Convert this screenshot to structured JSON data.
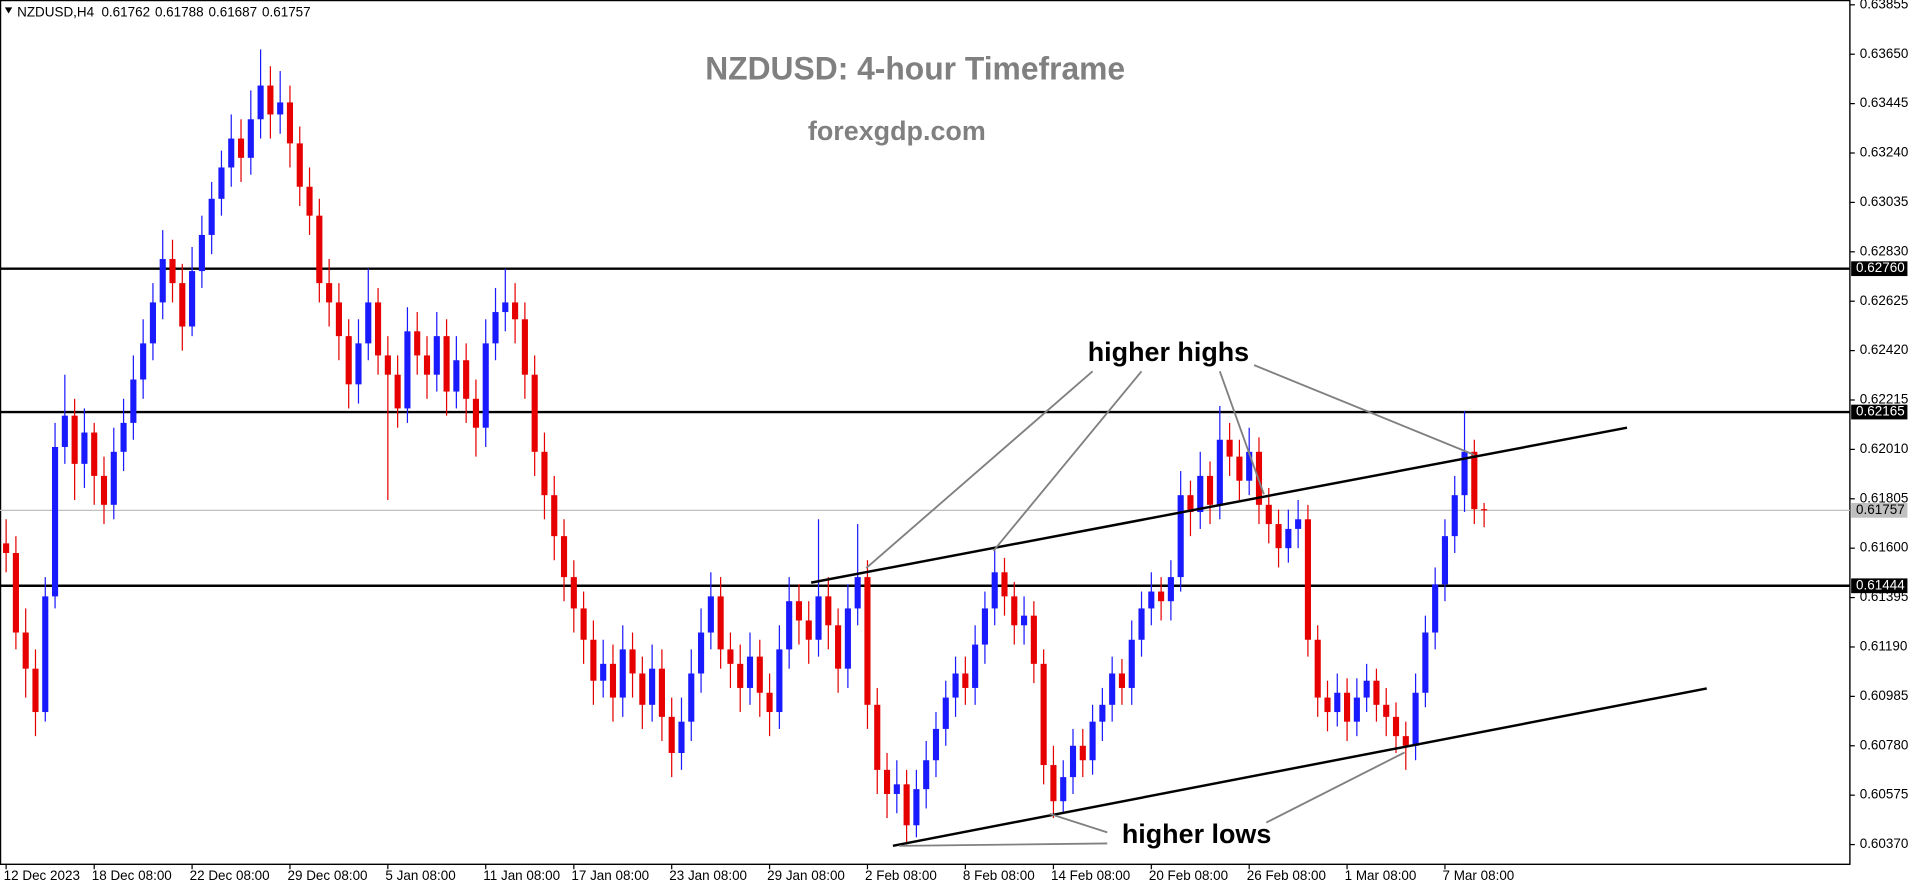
{
  "chart_data": {
    "type": "candlestick",
    "symbol": "NZDUSD,H4",
    "title": "NZDUSD: 4-hour Timeframe",
    "subtitle": "forexgdp.com",
    "annotations": [
      "higher highs",
      "higher lows"
    ],
    "up_color": "#1a1aff",
    "down_color": "#e60000",
    "level_color": "#000000",
    "bid_color": "#c0c0c0",
    "ylim": [
      0.60288,
      0.63875
    ],
    "yticks": [
      0.63855,
      {
        "value": 0.6365,
        "label": "0.63650"
      },
      0.63445,
      {
        "value": 0.6324,
        "label": "0.63240"
      },
      0.63035,
      {
        "value": 0.6283,
        "label": "0.62830"
      },
      0.62625,
      {
        "value": 0.6242,
        "label": "0.62420"
      },
      0.62215,
      {
        "value": 0.6201,
        "label": "0.62010"
      },
      0.61805,
      {
        "value": 0.616,
        "label": "0.61600"
      },
      0.61395,
      {
        "value": 0.6119,
        "label": "0.61190"
      },
      0.60985,
      {
        "value": 0.6078,
        "label": "0.60780"
      },
      0.60575,
      {
        "value": 0.6037,
        "label": "0.60370"
      }
    ],
    "levels": [
      {
        "value": 0.6276,
        "label": "0.62760"
      },
      0.62165,
      0.61444
    ],
    "trendlines": [
      {
        "x": [
          82.25,
          165.6
        ],
        "y": [
          0.61457,
          0.621
        ]
      },
      {
        "x": [
          90.6,
          173.75
        ],
        "y": [
          0.60365,
          0.61018
        ]
      }
    ],
    "categories": [
      "12 Dec 2023",
      null,
      null,
      null,
      null,
      null,
      null,
      null,
      null,
      "18 Dec 08:00",
      null,
      null,
      null,
      null,
      null,
      null,
      null,
      null,
      null,
      "22 Dec 08:00",
      null,
      null,
      null,
      null,
      null,
      null,
      null,
      null,
      null,
      "29 Dec 08:00",
      null,
      null,
      null,
      null,
      null,
      null,
      null,
      null,
      null,
      "5 Jan 08:00",
      null,
      null,
      null,
      null,
      null,
      null,
      null,
      null,
      null,
      "11 Jan 08:00",
      null,
      null,
      null,
      null,
      null,
      null,
      null,
      null,
      "17 Jan 08:00",
      null,
      null,
      null,
      null,
      null,
      null,
      null,
      null,
      null,
      "23 Jan 08:00",
      null,
      null,
      null,
      null,
      null,
      null,
      null,
      null,
      null,
      "29 Jan 08:00",
      null,
      null,
      null,
      null,
      null,
      null,
      null,
      null,
      null,
      "2 Feb 08:00",
      null,
      null,
      null,
      null,
      null,
      null,
      null,
      null,
      null,
      "8 Feb 08:00",
      null,
      null,
      null,
      null,
      null,
      null,
      null,
      null,
      "14 Feb 08:00",
      null,
      null,
      null,
      null,
      null,
      null,
      null,
      null,
      null,
      "20 Feb 08:00",
      null,
      null,
      null,
      null,
      null,
      null,
      null,
      null,
      null,
      "26 Feb 08:00",
      null,
      null,
      null,
      null,
      null,
      null,
      null,
      null,
      null,
      "1 Mar 08:00",
      null,
      null,
      null,
      null,
      null,
      null,
      null,
      null,
      null,
      "7 Mar 08:00",
      null,
      null,
      null,
      null
    ],
    "ohlc": [
      [
        0.6162,
        0.6172,
        0.615,
        0.6158
      ],
      [
        0.6158,
        0.6165,
        0.6118,
        0.6125
      ],
      [
        0.6125,
        0.6135,
        0.6098,
        0.611
      ],
      [
        0.611,
        0.6118,
        0.6082,
        0.6092
      ],
      [
        0.6092,
        0.6148,
        0.6088,
        0.614
      ],
      [
        0.614,
        0.6212,
        0.6135,
        0.6202
      ],
      [
        0.6202,
        0.6232,
        0.6195,
        0.6215
      ],
      [
        0.6215,
        0.6222,
        0.618,
        0.6195
      ],
      [
        0.6195,
        0.6218,
        0.6185,
        0.6208
      ],
      [
        0.6208,
        0.6212,
        0.6178,
        0.619
      ],
      [
        0.619,
        0.6198,
        0.617,
        0.6178
      ],
      [
        0.6178,
        0.621,
        0.6172,
        0.62
      ],
      [
        0.62,
        0.6222,
        0.6192,
        0.6212
      ],
      [
        0.6212,
        0.624,
        0.6205,
        0.623
      ],
      [
        0.623,
        0.6255,
        0.6222,
        0.6245
      ],
      [
        0.6245,
        0.627,
        0.6238,
        0.6262
      ],
      [
        0.6262,
        0.6292,
        0.6255,
        0.628
      ],
      [
        0.628,
        0.6288,
        0.6262,
        0.627
      ],
      [
        0.627,
        0.6278,
        0.6242,
        0.6252
      ],
      [
        0.6252,
        0.6285,
        0.6248,
        0.6275
      ],
      [
        0.6275,
        0.6298,
        0.6268,
        0.629
      ],
      [
        0.629,
        0.6312,
        0.6282,
        0.6305
      ],
      [
        0.6305,
        0.6325,
        0.6298,
        0.6318
      ],
      [
        0.6318,
        0.634,
        0.631,
        0.633
      ],
      [
        0.633,
        0.6338,
        0.6312,
        0.6322
      ],
      [
        0.6322,
        0.635,
        0.6315,
        0.6338
      ],
      [
        0.6338,
        0.6367,
        0.633,
        0.6352
      ],
      [
        0.6352,
        0.636,
        0.633,
        0.634
      ],
      [
        0.634,
        0.6358,
        0.6332,
        0.6345
      ],
      [
        0.6345,
        0.6352,
        0.6318,
        0.6328
      ],
      [
        0.6328,
        0.6335,
        0.6302,
        0.631
      ],
      [
        0.631,
        0.6318,
        0.629,
        0.6298
      ],
      [
        0.6298,
        0.6305,
        0.6262,
        0.627
      ],
      [
        0.627,
        0.628,
        0.6252,
        0.6262
      ],
      [
        0.6262,
        0.627,
        0.6238,
        0.6248
      ],
      [
        0.6248,
        0.6255,
        0.6218,
        0.6228
      ],
      [
        0.6228,
        0.6255,
        0.622,
        0.6245
      ],
      [
        0.6245,
        0.6276,
        0.6238,
        0.6262
      ],
      [
        0.6262,
        0.6268,
        0.6232,
        0.624
      ],
      [
        0.624,
        0.6248,
        0.618,
        0.6232
      ],
      [
        0.6232,
        0.624,
        0.621,
        0.6218
      ],
      [
        0.6218,
        0.626,
        0.6212,
        0.625
      ],
      [
        0.625,
        0.6258,
        0.6232,
        0.624
      ],
      [
        0.624,
        0.6248,
        0.6222,
        0.6232
      ],
      [
        0.6232,
        0.6258,
        0.6225,
        0.6248
      ],
      [
        0.6248,
        0.6255,
        0.6215,
        0.6225
      ],
      [
        0.6225,
        0.6248,
        0.6218,
        0.6238
      ],
      [
        0.6238,
        0.6245,
        0.6212,
        0.6222
      ],
      [
        0.6222,
        0.623,
        0.6198,
        0.621
      ],
      [
        0.621,
        0.6255,
        0.6202,
        0.6245
      ],
      [
        0.6245,
        0.6268,
        0.6238,
        0.6258
      ],
      [
        0.6258,
        0.6276,
        0.625,
        0.6262
      ],
      [
        0.6262,
        0.627,
        0.6245,
        0.6255
      ],
      [
        0.6255,
        0.6262,
        0.6222,
        0.6232
      ],
      [
        0.6232,
        0.624,
        0.619,
        0.62
      ],
      [
        0.62,
        0.6208,
        0.6172,
        0.6182
      ],
      [
        0.6182,
        0.619,
        0.6155,
        0.6165
      ],
      [
        0.6165,
        0.6172,
        0.6138,
        0.6148
      ],
      [
        0.6148,
        0.6155,
        0.6125,
        0.6135
      ],
      [
        0.6135,
        0.6142,
        0.6112,
        0.6122
      ],
      [
        0.6122,
        0.613,
        0.6095,
        0.6105
      ],
      [
        0.6105,
        0.6122,
        0.6098,
        0.6112
      ],
      [
        0.6112,
        0.612,
        0.6088,
        0.6098
      ],
      [
        0.6098,
        0.6128,
        0.609,
        0.6118
      ],
      [
        0.6118,
        0.6125,
        0.6098,
        0.6108
      ],
      [
        0.6108,
        0.6115,
        0.6085,
        0.6095
      ],
      [
        0.6095,
        0.612,
        0.6088,
        0.611
      ],
      [
        0.611,
        0.6118,
        0.608,
        0.609
      ],
      [
        0.609,
        0.6098,
        0.6065,
        0.6075
      ],
      [
        0.6075,
        0.6098,
        0.6068,
        0.6088
      ],
      [
        0.6088,
        0.6118,
        0.608,
        0.6108
      ],
      [
        0.6108,
        0.6135,
        0.61,
        0.6125
      ],
      [
        0.6125,
        0.615,
        0.6118,
        0.614
      ],
      [
        0.614,
        0.6148,
        0.611,
        0.6118
      ],
      [
        0.6118,
        0.6125,
        0.6102,
        0.6112
      ],
      [
        0.6112,
        0.612,
        0.6092,
        0.6102
      ],
      [
        0.6102,
        0.6125,
        0.6095,
        0.6115
      ],
      [
        0.6115,
        0.6122,
        0.609,
        0.61
      ],
      [
        0.61,
        0.6108,
        0.6082,
        0.6092
      ],
      [
        0.6092,
        0.6128,
        0.6085,
        0.6118
      ],
      [
        0.6118,
        0.6148,
        0.611,
        0.6138
      ],
      [
        0.6138,
        0.6145,
        0.612,
        0.613
      ],
      [
        0.613,
        0.6138,
        0.6112,
        0.6122
      ],
      [
        0.6122,
        0.6172,
        0.6115,
        0.614
      ],
      [
        0.614,
        0.6148,
        0.6118,
        0.6128
      ],
      [
        0.6128,
        0.6135,
        0.61,
        0.611
      ],
      [
        0.611,
        0.6145,
        0.6102,
        0.6135
      ],
      [
        0.6135,
        0.617,
        0.6128,
        0.6148
      ],
      [
        0.6148,
        0.6155,
        0.6085,
        0.6095
      ],
      [
        0.6095,
        0.6102,
        0.6058,
        0.6068
      ],
      [
        0.6068,
        0.6075,
        0.6048,
        0.6058
      ],
      [
        0.6058,
        0.6072,
        0.605,
        0.6062
      ],
      [
        0.6062,
        0.6068,
        0.6037,
        0.6045
      ],
      [
        0.6045,
        0.6068,
        0.604,
        0.606
      ],
      [
        0.606,
        0.608,
        0.6052,
        0.6072
      ],
      [
        0.6072,
        0.6092,
        0.6065,
        0.6085
      ],
      [
        0.6085,
        0.6105,
        0.6078,
        0.6098
      ],
      [
        0.6098,
        0.6115,
        0.609,
        0.6108
      ],
      [
        0.6108,
        0.6115,
        0.6095,
        0.6102
      ],
      [
        0.6102,
        0.6128,
        0.6095,
        0.612
      ],
      [
        0.612,
        0.6142,
        0.6112,
        0.6135
      ],
      [
        0.6135,
        0.616,
        0.6128,
        0.615
      ],
      [
        0.615,
        0.6156,
        0.6132,
        0.614
      ],
      [
        0.614,
        0.6146,
        0.612,
        0.6128
      ],
      [
        0.6128,
        0.614,
        0.612,
        0.6132
      ],
      [
        0.6132,
        0.6138,
        0.6104,
        0.6112
      ],
      [
        0.6112,
        0.6118,
        0.6062,
        0.607
      ],
      [
        0.607,
        0.6078,
        0.6048,
        0.6055
      ],
      [
        0.6055,
        0.6072,
        0.605,
        0.6065
      ],
      [
        0.6065,
        0.6085,
        0.6058,
        0.6078
      ],
      [
        0.6078,
        0.6085,
        0.6065,
        0.6072
      ],
      [
        0.6072,
        0.6095,
        0.6066,
        0.6088
      ],
      [
        0.6088,
        0.6102,
        0.608,
        0.6095
      ],
      [
        0.6095,
        0.6115,
        0.6088,
        0.6108
      ],
      [
        0.6108,
        0.6114,
        0.6095,
        0.6102
      ],
      [
        0.6102,
        0.613,
        0.6095,
        0.6122
      ],
      [
        0.6122,
        0.6142,
        0.6115,
        0.6135
      ],
      [
        0.6135,
        0.615,
        0.6128,
        0.6142
      ],
      [
        0.6142,
        0.6148,
        0.613,
        0.6138
      ],
      [
        0.6138,
        0.6155,
        0.613,
        0.6148
      ],
      [
        0.6148,
        0.6192,
        0.6142,
        0.6182
      ],
      [
        0.6182,
        0.6188,
        0.6165,
        0.6175
      ],
      [
        0.6175,
        0.62,
        0.6168,
        0.619
      ],
      [
        0.619,
        0.6196,
        0.617,
        0.6178
      ],
      [
        0.6178,
        0.6219,
        0.6172,
        0.6205
      ],
      [
        0.6205,
        0.6212,
        0.619,
        0.6198
      ],
      [
        0.6198,
        0.6205,
        0.618,
        0.6188
      ],
      [
        0.6188,
        0.621,
        0.6182,
        0.62
      ],
      [
        0.62,
        0.6206,
        0.617,
        0.6178
      ],
      [
        0.6178,
        0.6185,
        0.6162,
        0.617
      ],
      [
        0.617,
        0.6176,
        0.6152,
        0.616
      ],
      [
        0.616,
        0.6176,
        0.6154,
        0.6168
      ],
      [
        0.6168,
        0.618,
        0.616,
        0.6172
      ],
      [
        0.6172,
        0.6178,
        0.6115,
        0.6122
      ],
      [
        0.6122,
        0.6128,
        0.609,
        0.6098
      ],
      [
        0.6098,
        0.6105,
        0.6084,
        0.6092
      ],
      [
        0.6092,
        0.6108,
        0.6086,
        0.61
      ],
      [
        0.61,
        0.6106,
        0.608,
        0.6088
      ],
      [
        0.6088,
        0.6106,
        0.6082,
        0.6098
      ],
      [
        0.6098,
        0.6112,
        0.6092,
        0.6105
      ],
      [
        0.6105,
        0.611,
        0.6088,
        0.6095
      ],
      [
        0.6095,
        0.6102,
        0.6082,
        0.609
      ],
      [
        0.609,
        0.6096,
        0.6075,
        0.6082
      ],
      [
        0.6082,
        0.6088,
        0.6068,
        0.6078
      ],
      [
        0.6078,
        0.6108,
        0.6072,
        0.61
      ],
      [
        0.61,
        0.6132,
        0.6094,
        0.6125
      ],
      [
        0.6125,
        0.6152,
        0.6118,
        0.6145
      ],
      [
        0.6145,
        0.6172,
        0.6138,
        0.6165
      ],
      [
        0.6165,
        0.619,
        0.6158,
        0.6182
      ],
      [
        0.6182,
        0.6217,
        0.6175,
        0.62
      ],
      [
        0.62,
        0.6205,
        0.617,
        0.61762
      ],
      [
        0.61762,
        0.61788,
        0.61687,
        0.61757
      ]
    ]
  }
}
